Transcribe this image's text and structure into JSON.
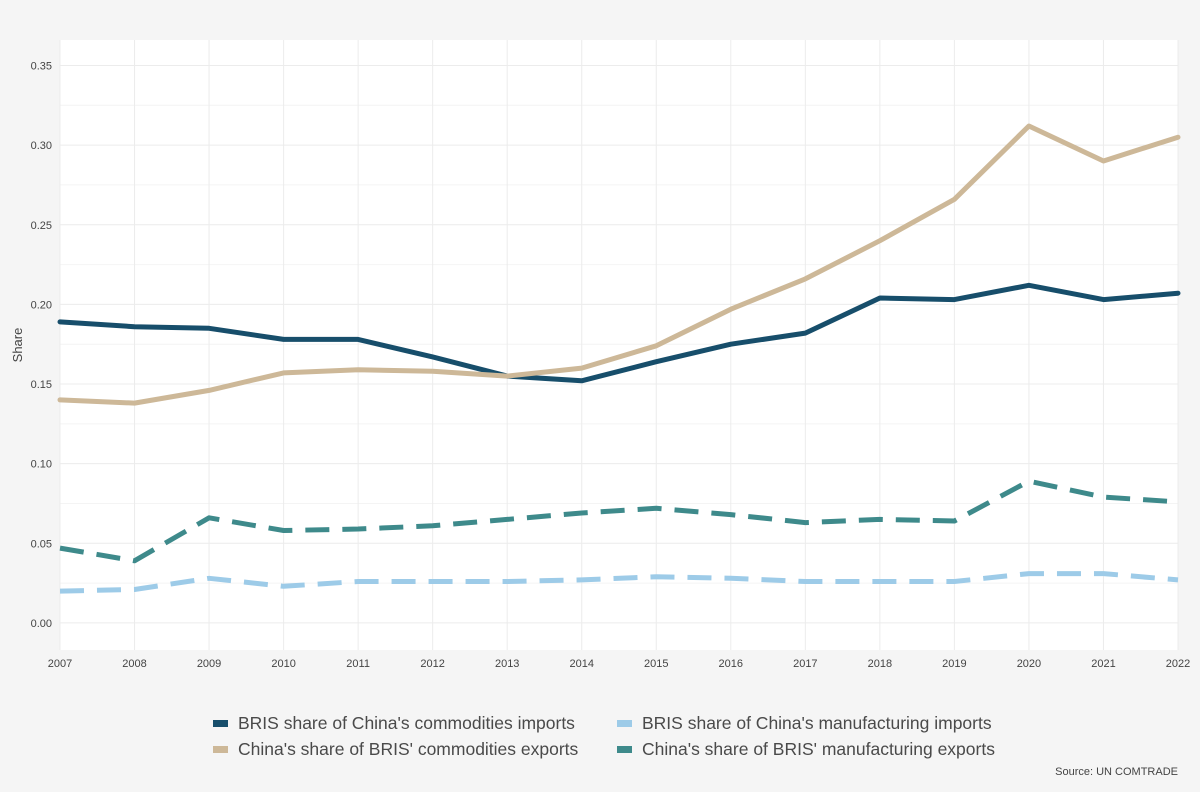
{
  "chart_data": {
    "type": "line",
    "title": "",
    "xlabel": "",
    "ylabel": "Share",
    "x": [
      2007,
      2008,
      2009,
      2010,
      2011,
      2012,
      2013,
      2014,
      2015,
      2016,
      2017,
      2018,
      2019,
      2020,
      2021,
      2022
    ],
    "xlim": [
      2007,
      2022
    ],
    "ylim": [
      -0.017,
      0.366
    ],
    "yticks": [
      0.0,
      0.05,
      0.1,
      0.15,
      0.2,
      0.25,
      0.3,
      0.35
    ],
    "ytick_labels": [
      "0.00",
      "0.05",
      "0.10",
      "0.15",
      "0.20",
      "0.25",
      "0.30",
      "0.35"
    ],
    "grid": true,
    "legend_position": "bottom",
    "series": [
      {
        "name": "BRIS share of China's commodities imports",
        "color": "#174e6b",
        "dash": "solid",
        "values": [
          0.189,
          0.186,
          0.185,
          0.178,
          0.178,
          0.167,
          0.155,
          0.152,
          0.164,
          0.175,
          0.182,
          0.204,
          0.203,
          0.212,
          0.203,
          0.207
        ]
      },
      {
        "name": "BRIS share of China's manufacturing imports",
        "color": "#9dcbe8",
        "dash": "dashed",
        "values": [
          0.02,
          0.021,
          0.028,
          0.023,
          0.026,
          0.026,
          0.026,
          0.027,
          0.029,
          0.028,
          0.026,
          0.026,
          0.026,
          0.031,
          0.031,
          0.027
        ]
      },
      {
        "name": "China's share of BRIS' commodities exports",
        "color": "#cdb898",
        "dash": "solid",
        "values": [
          0.14,
          0.138,
          0.146,
          0.157,
          0.159,
          0.158,
          0.155,
          0.16,
          0.174,
          0.197,
          0.216,
          0.24,
          0.266,
          0.312,
          0.29,
          0.305
        ]
      },
      {
        "name": "China's share of BRIS' manufacturing exports",
        "color": "#3e8a8b",
        "dash": "dashed",
        "values": [
          0.047,
          0.039,
          0.066,
          0.058,
          0.059,
          0.061,
          0.065,
          0.069,
          0.072,
          0.068,
          0.063,
          0.065,
          0.064,
          0.089,
          0.079,
          0.076
        ]
      }
    ],
    "legend_order": [
      0,
      1,
      2,
      3
    ],
    "source": "Source: UN COMTRADE"
  }
}
